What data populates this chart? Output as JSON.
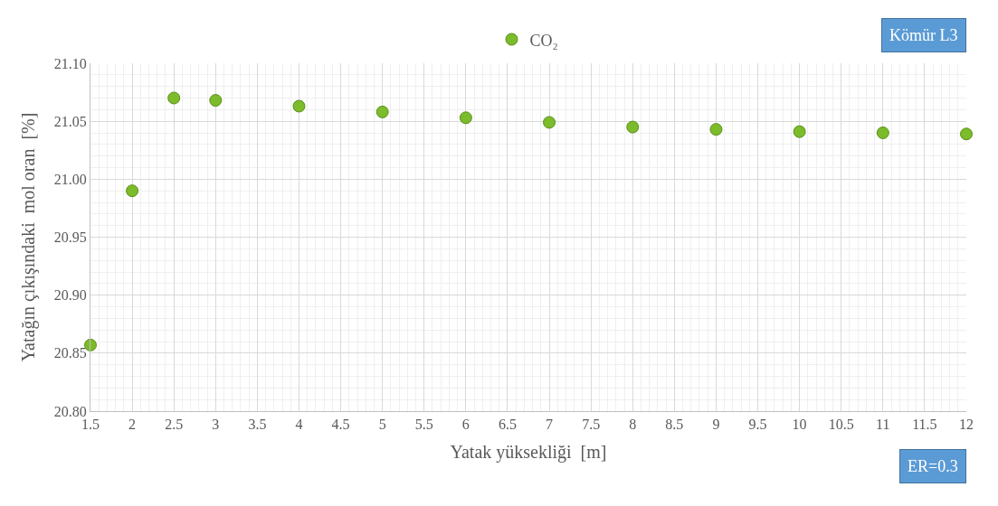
{
  "chart_data": {
    "type": "scatter",
    "xlabel": "Yatak yüksekliği  [m]",
    "ylabel": "Yatağın çıkışındaki  mol oran  [%]",
    "x": [
      1.5,
      2,
      2.5,
      3,
      4,
      5,
      6,
      7,
      8,
      9,
      10,
      11,
      12
    ],
    "series": [
      {
        "name": "CO₂",
        "color": "#7cbb2a",
        "values": [
          20.857,
          20.99,
          21.07,
          21.068,
          21.063,
          21.058,
          21.053,
          21.049,
          21.045,
          21.043,
          21.041,
          21.04,
          21.039
        ]
      }
    ],
    "xlim": [
      1.5,
      12
    ],
    "xticks": [
      1.5,
      2,
      2.5,
      3,
      3.5,
      4,
      4.5,
      5,
      5.5,
      6,
      6.5,
      7,
      7.5,
      8,
      8.5,
      9,
      9.5,
      10,
      10.5,
      11,
      11.5,
      12
    ],
    "ylim": [
      20.8,
      21.1
    ],
    "yticks": [
      {
        "value": 20.8,
        "label": "20.80"
      },
      {
        "value": 20.85,
        "label": "20.85"
      },
      {
        "value": 20.9,
        "label": "20.90"
      },
      {
        "value": 20.95,
        "label": "20.95"
      },
      {
        "value": 21.0,
        "label": "21.00"
      },
      {
        "value": 21.05,
        "label": "21.05"
      },
      {
        "value": 21.1,
        "label": "21.10"
      }
    ],
    "grid": true,
    "legend": "top",
    "marker": "circle",
    "annotations": [
      "Kömür L3",
      "ER=0.3"
    ]
  }
}
